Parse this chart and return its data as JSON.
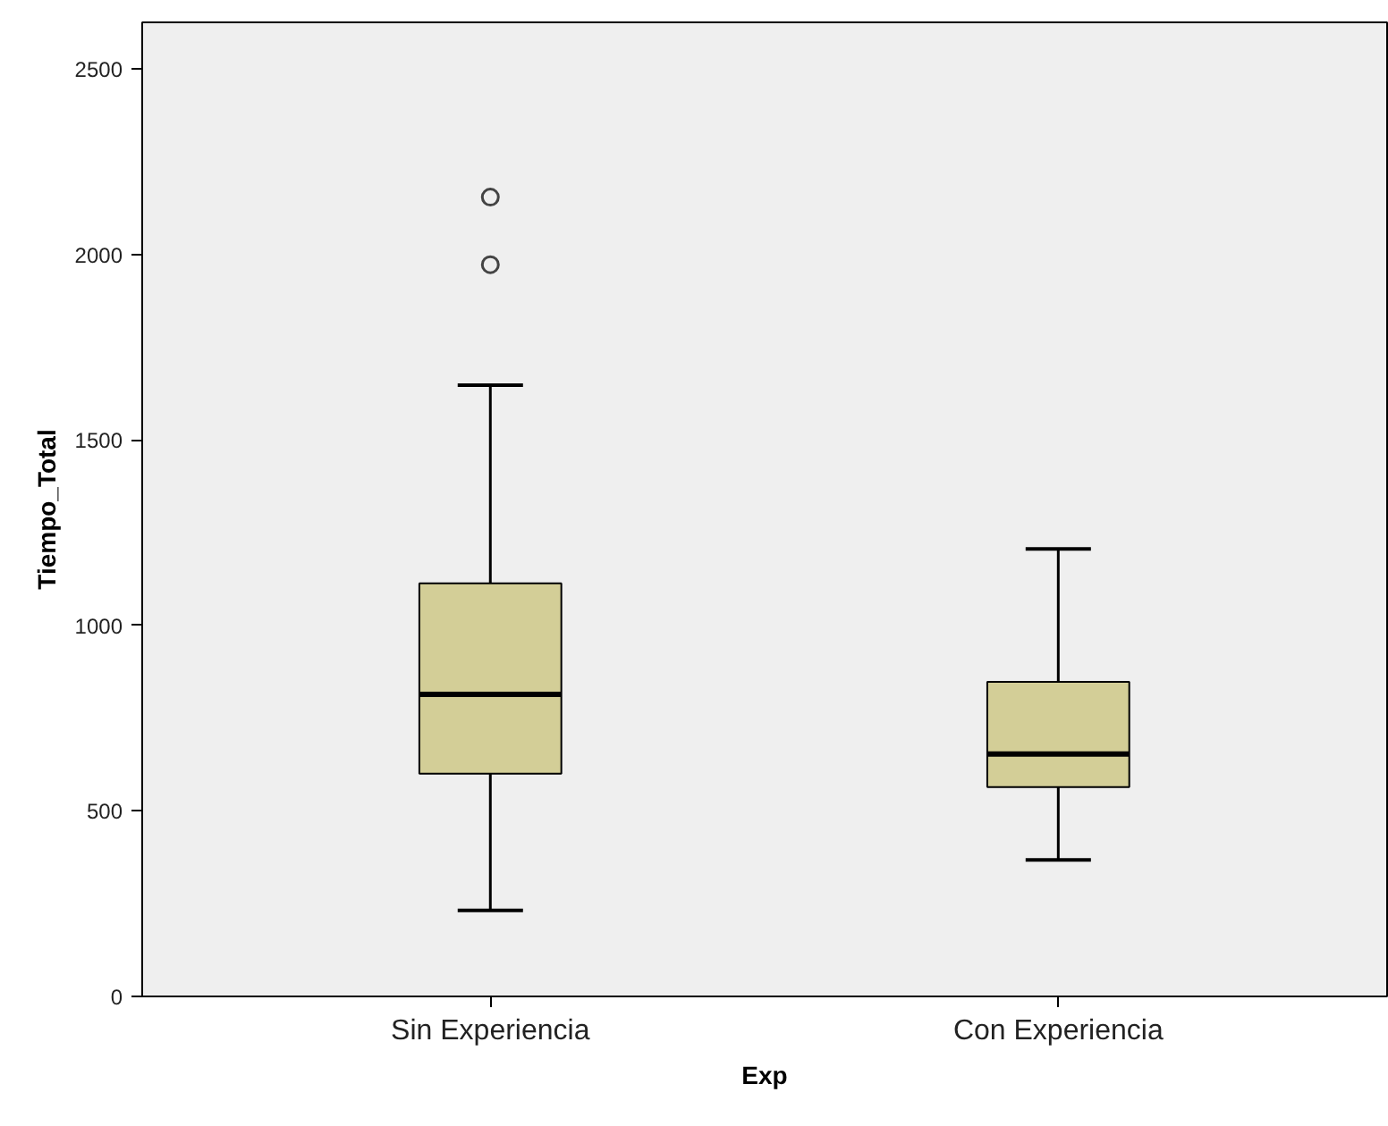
{
  "chart_data": {
    "type": "box",
    "xlabel": "Exp",
    "ylabel": "Tiempo_Total",
    "categories": [
      "Sin Experiencia",
      "Con Experiencia"
    ],
    "color": "#d3ce97",
    "boxes": [
      {
        "low": 232,
        "q1": 600,
        "median": 814,
        "q3": 1113,
        "high": 1647,
        "outliers": [
          1972,
          2154
        ]
      },
      {
        "low": 368,
        "q1": 564,
        "median": 653,
        "q3": 848,
        "high": 1206
      }
    ],
    "ylim": [
      0,
      2625
    ],
    "yticks": [
      0,
      500,
      1000,
      1500,
      2000,
      2500
    ],
    "grid": false
  }
}
